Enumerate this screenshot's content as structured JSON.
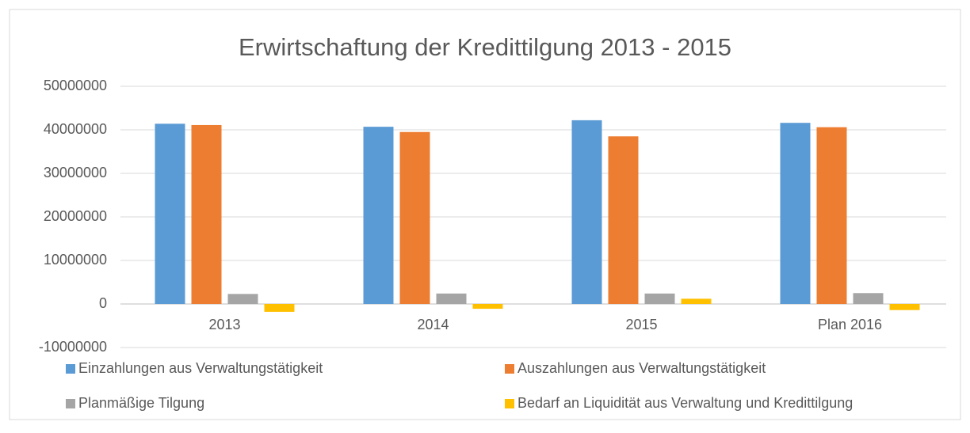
{
  "chart_data": {
    "type": "bar",
    "title": "Erwirtschaftung der Kredittilgung 2013 - 2015",
    "categories": [
      "2013",
      "2014",
      "2015",
      "Plan 2016"
    ],
    "series": [
      {
        "name": "Einzahlungen aus Verwaltungstätigkeit",
        "color": "#5b9bd5",
        "values": [
          41400000,
          40700000,
          42200000,
          41600000
        ]
      },
      {
        "name": "Auszahlungen aus Verwaltungstätigkeit",
        "color": "#ed7d31",
        "values": [
          41100000,
          39500000,
          38500000,
          40600000
        ]
      },
      {
        "name": "Planmäßige Tilgung",
        "color": "#a5a5a5",
        "values": [
          2300000,
          2400000,
          2400000,
          2500000
        ]
      },
      {
        "name": "Bedarf an Liquidität aus Verwaltung und Kredittilgung",
        "color": "#ffc000",
        "values": [
          -1800000,
          -1100000,
          1200000,
          -1400000
        ]
      }
    ],
    "ylim": [
      -10000000,
      50000000
    ],
    "yticks": [
      -10000000,
      0,
      10000000,
      20000000,
      30000000,
      40000000,
      50000000
    ],
    "grid": true,
    "legend": "bottom"
  }
}
